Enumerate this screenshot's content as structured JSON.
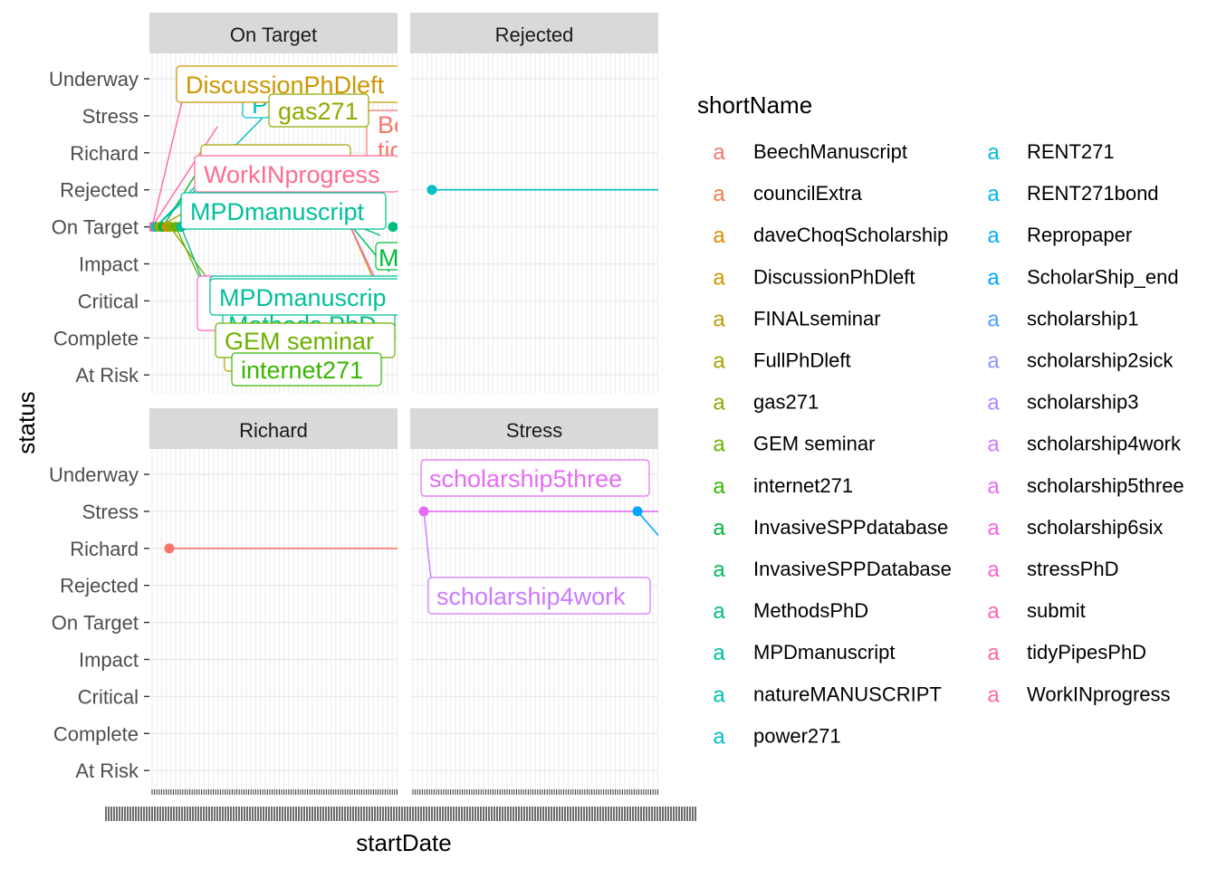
{
  "chart_data": {
    "type": "line",
    "xlabel": "startDate",
    "ylabel": "status",
    "status_levels": [
      "Underway",
      "Stress",
      "Richard",
      "Rejected",
      "On Target",
      "Impact",
      "Critical",
      "Complete",
      "At Risk"
    ],
    "facets": [
      {
        "title": "On Target",
        "labels": [
          {
            "text": "DiscussionPhDleft",
            "series": "DiscussionPhDleft",
            "status": "Underway"
          },
          {
            "text": "gas271",
            "series": "gas271",
            "status": "Stress"
          },
          {
            "text": "WorkINprogress",
            "series": "WorkINprogress",
            "status": "Rejected"
          },
          {
            "text": "MPDmanuscript",
            "series": "MPDmanuscript",
            "status": "On Target"
          },
          {
            "text": "MPDmanuscrip",
            "series": "MPDmanuscript",
            "status": "Critical"
          },
          {
            "text": "GEM seminar",
            "series": "GEM seminar",
            "status": "Complete"
          },
          {
            "text": "internet271",
            "series": "internet271",
            "status": "At Risk"
          }
        ]
      },
      {
        "title": "Rejected",
        "points": [
          {
            "series": "power271",
            "status": "Rejected"
          }
        ],
        "labels": []
      },
      {
        "title": "Richard",
        "points": [
          {
            "series": "BeechManuscript",
            "status": "Richard"
          }
        ],
        "labels": []
      },
      {
        "title": "Stress",
        "points": [
          {
            "series": "scholarship5three",
            "status": "Stress"
          },
          {
            "series": "ScholarShip_end",
            "status": "Stress"
          }
        ],
        "labels": [
          {
            "text": "scholarship5three",
            "series": "scholarship5three",
            "status": "Stress"
          },
          {
            "text": "scholarship4work",
            "series": "scholarship4work",
            "status": "On Target"
          }
        ]
      }
    ],
    "legend": {
      "title": "shortName",
      "key_glyph": "a",
      "position": "right",
      "entries": [
        {
          "name": "BeechManuscript",
          "color": "#F8766D"
        },
        {
          "name": "councilExtra",
          "color": "#EE8044"
        },
        {
          "name": "daveChoqScholarship",
          "color": "#DF8A00"
        },
        {
          "name": "DiscussionPhDleft",
          "color": "#CD9600"
        },
        {
          "name": "FINALseminar",
          "color": "#BB9D00"
        },
        {
          "name": "FullPhDleft",
          "color": "#A5A400"
        },
        {
          "name": "gas271",
          "color": "#8BAB00"
        },
        {
          "name": "GEM seminar",
          "color": "#6BB100"
        },
        {
          "name": "internet271",
          "color": "#39B600"
        },
        {
          "name": "InvasiveSPPdatabase",
          "color": "#00BA38"
        },
        {
          "name": "InvasiveSPPDatabase",
          "color": "#00BC5A"
        },
        {
          "name": "MethodsPhD",
          "color": "#00BF7D"
        },
        {
          "name": "MPDmanuscript",
          "color": "#00C09A"
        },
        {
          "name": "natureMANUSCRIPT",
          "color": "#00C1B3"
        },
        {
          "name": "power271",
          "color": "#00C0C6"
        },
        {
          "name": "RENT271",
          "color": "#00BCD8"
        },
        {
          "name": "RENT271bond",
          "color": "#00B7E8"
        },
        {
          "name": "Repropaper",
          "color": "#00B0F6"
        },
        {
          "name": "ScholarShip_end",
          "color": "#00A6FF"
        },
        {
          "name": "scholarship1",
          "color": "#4D9EFF"
        },
        {
          "name": "scholarship2sick",
          "color": "#8F93FF"
        },
        {
          "name": "scholarship3",
          "color": "#B385FF"
        },
        {
          "name": "scholarship4work",
          "color": "#CD79FF"
        },
        {
          "name": "scholarship5three",
          "color": "#E56CF4"
        },
        {
          "name": "scholarship6six",
          "color": "#F464E5"
        },
        {
          "name": "stressPhD",
          "color": "#FD61D1"
        },
        {
          "name": "submit",
          "color": "#FF62BC"
        },
        {
          "name": "tidyPipesPhD",
          "color": "#FF68A1"
        },
        {
          "name": "WorkINprogress",
          "color": "#FF6C91"
        }
      ]
    },
    "grid": true,
    "panel_background": "#FFFFFF",
    "strip_background": "#D9D9D9",
    "gridline_color": "#EBEBEB"
  }
}
